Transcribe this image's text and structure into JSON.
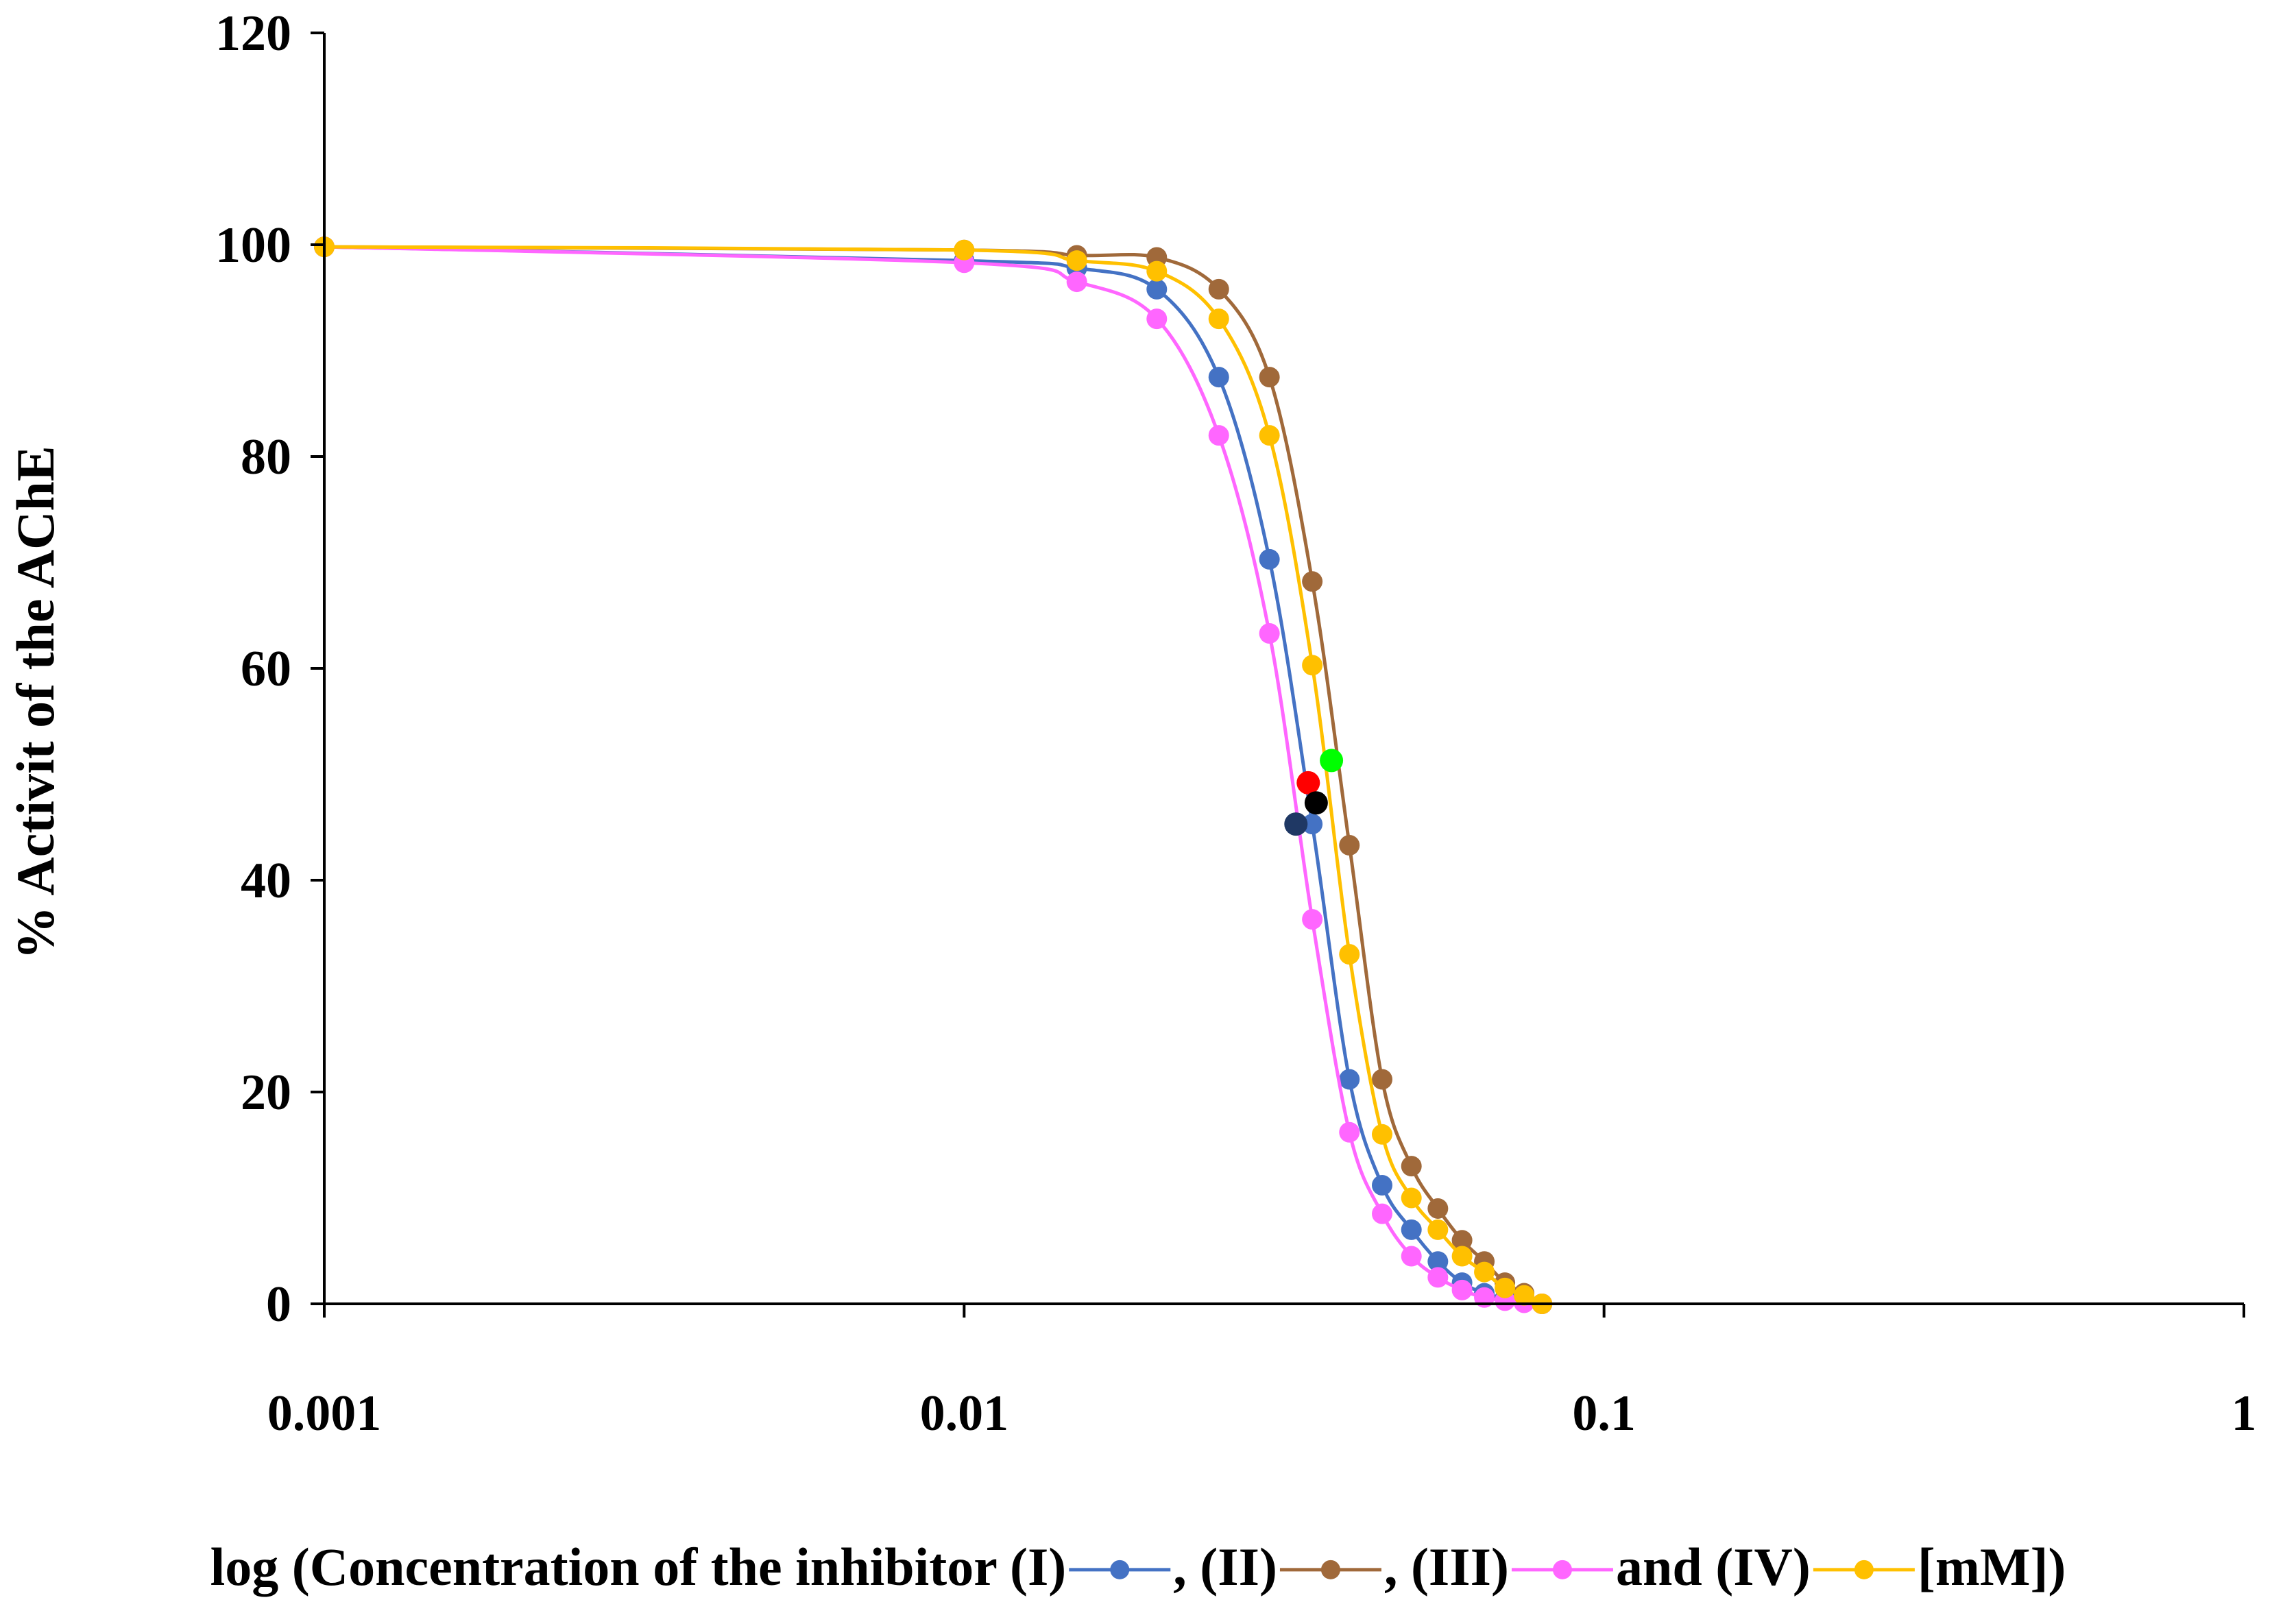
{
  "chart_data": {
    "type": "line",
    "xscale": "log",
    "xlim": [
      0.001,
      1
    ],
    "ylim": [
      0,
      120
    ],
    "ylabel": "% Activit of the AChE",
    "xlabel_parts": [
      {
        "text": "log (Concentration of the inhibitor (I)",
        "series": 0
      },
      {
        "text": ", (II)",
        "series": 1
      },
      {
        "text": ", (III)",
        "series": 2
      },
      {
        "text": "and (IV)",
        "series": 3
      },
      {
        "text": "[mM])",
        "series": null
      }
    ],
    "x_ticks": [
      {
        "value": 0.001,
        "label": "0.001"
      },
      {
        "value": 0.01,
        "label": "0.01"
      },
      {
        "value": 0.1,
        "label": "0.1"
      },
      {
        "value": 1,
        "label": "1"
      }
    ],
    "y_ticks": [
      {
        "value": 0,
        "label": "0"
      },
      {
        "value": 20,
        "label": "20"
      },
      {
        "value": 40,
        "label": "40"
      },
      {
        "value": 60,
        "label": "60"
      },
      {
        "value": 80,
        "label": "80"
      },
      {
        "value": 100,
        "label": "100"
      },
      {
        "value": 120,
        "label": "120"
      }
    ],
    "grid": false,
    "series": [
      {
        "color": "#4472C4",
        "x": [
          0.001,
          0.01,
          0.015,
          0.02,
          0.025,
          0.03,
          0.035,
          0.04,
          0.045,
          0.05,
          0.055,
          0.06,
          0.065,
          0.07,
          0.075,
          0.08
        ],
        "y": [
          99.8,
          98.5,
          97.8,
          95.8,
          87.5,
          70.3,
          45.3,
          21.2,
          11.2,
          7.0,
          4.0,
          2.0,
          1.0,
          0.5,
          0.2,
          0.0
        ]
      },
      {
        "color": "#A0693A",
        "x": [
          0.001,
          0.01,
          0.015,
          0.02,
          0.025,
          0.03,
          0.035,
          0.04,
          0.045,
          0.05,
          0.055,
          0.06,
          0.065,
          0.07,
          0.075,
          0.08
        ],
        "y": [
          99.8,
          99.5,
          99.0,
          98.8,
          95.8,
          87.5,
          68.2,
          43.3,
          21.2,
          13.0,
          9.0,
          6.0,
          4.0,
          2.0,
          1.0,
          0.0
        ]
      },
      {
        "color": "#FF66FF",
        "x": [
          0.001,
          0.01,
          0.015,
          0.02,
          0.025,
          0.03,
          0.035,
          0.04,
          0.045,
          0.05,
          0.055,
          0.06,
          0.065,
          0.07,
          0.075,
          0.08
        ],
        "y": [
          99.8,
          98.3,
          96.5,
          93.0,
          82.0,
          63.3,
          36.3,
          16.2,
          8.5,
          4.5,
          2.5,
          1.3,
          0.6,
          0.3,
          0.1,
          0.0
        ]
      },
      {
        "color": "#FFC000",
        "x": [
          0.001,
          0.01,
          0.015,
          0.02,
          0.025,
          0.03,
          0.035,
          0.04,
          0.045,
          0.05,
          0.055,
          0.06,
          0.065,
          0.07,
          0.075,
          0.08
        ],
        "y": [
          99.8,
          99.5,
          98.5,
          97.5,
          93.0,
          82.0,
          60.3,
          33.0,
          16.0,
          10.0,
          7.0,
          4.5,
          3.0,
          1.5,
          0.8,
          0.0
        ]
      }
    ],
    "ic50_points": [
      {
        "color": "#1F3864",
        "x": 0.033,
        "y": 45.3
      },
      {
        "color": "#FF0000",
        "x": 0.0345,
        "y": 49.2
      },
      {
        "color": "#000000",
        "x": 0.0355,
        "y": 47.3
      },
      {
        "color": "#00FF00",
        "x": 0.0375,
        "y": 51.3
      }
    ]
  }
}
